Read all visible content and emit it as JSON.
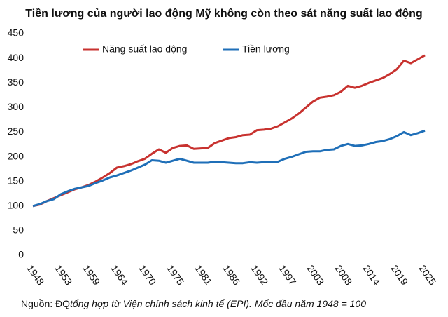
{
  "chart_data": {
    "type": "line",
    "title": "Tiền lương của người lao động Mỹ không còn theo sát năng suất lao động",
    "source": "Nguồn: ĐQ",
    "source_note": "tổng hợp từ Viện chính sách kinh tế (EPI). Mốc đầu năm 1948 = 100",
    "categories": [
      "1948",
      null,
      null,
      null,
      "1953",
      null,
      null,
      null,
      "1959",
      null,
      null,
      null,
      "1964",
      null,
      null,
      null,
      "1970",
      null,
      null,
      null,
      "1975",
      null,
      null,
      null,
      "1981",
      null,
      null,
      null,
      "1986",
      null,
      null,
      null,
      "1992",
      null,
      null,
      null,
      "1997",
      null,
      null,
      null,
      "2003",
      null,
      null,
      null,
      "2008",
      null,
      null,
      null,
      "2014",
      null,
      null,
      null,
      "2019",
      null,
      null,
      null,
      "2025"
    ],
    "series": [
      {
        "name": "Năng suất lao động",
        "color": "#c8322f",
        "values": [
          100,
          103,
          110,
          116,
          122,
          128,
          134,
          138,
          143,
          150,
          158,
          167,
          178,
          181,
          185,
          191,
          196,
          206,
          215,
          208,
          218,
          222,
          223,
          216,
          217,
          218,
          228,
          233,
          238,
          240,
          244,
          245,
          254,
          255,
          257,
          262,
          270,
          278,
          288,
          300,
          312,
          320,
          322,
          325,
          332,
          344,
          340,
          344,
          350,
          355,
          360,
          368,
          378,
          395,
          390,
          398,
          406
        ]
      },
      {
        "name": "Tiền lương",
        "color": "#1f6fb8",
        "values": [
          100,
          104,
          110,
          114,
          124,
          130,
          135,
          138,
          141,
          147,
          152,
          158,
          162,
          167,
          172,
          178,
          184,
          193,
          192,
          188,
          192,
          196,
          192,
          188,
          188,
          188,
          190,
          189,
          188,
          187,
          187,
          189,
          188,
          189,
          189,
          190,
          196,
          200,
          205,
          210,
          211,
          211,
          214,
          215,
          222,
          226,
          222,
          223,
          226,
          230,
          232,
          236,
          242,
          250,
          244,
          248,
          253
        ]
      }
    ],
    "ylim": [
      0,
      450
    ],
    "yticks": [
      0,
      50,
      100,
      150,
      200,
      250,
      300,
      350,
      400,
      450
    ],
    "grid": false,
    "legend": "top"
  }
}
